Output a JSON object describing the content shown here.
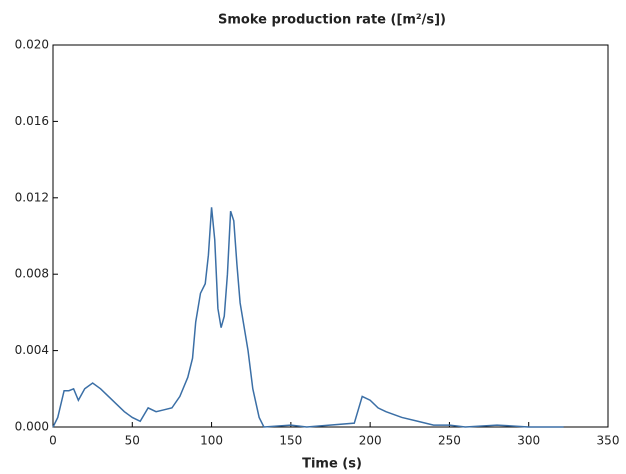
{
  "chart_data": {
    "type": "line",
    "title": "Smoke production rate ([m²/s])",
    "xlabel": "Time (s)",
    "x": [
      0,
      3,
      7,
      10,
      13,
      16,
      20,
      25,
      30,
      35,
      40,
      45,
      50,
      55,
      60,
      65,
      70,
      75,
      80,
      85,
      88,
      90,
      93,
      96,
      98,
      100,
      102,
      104,
      106,
      108,
      110,
      112,
      114,
      116,
      118,
      120,
      123,
      126,
      130,
      133,
      150,
      160,
      190,
      195,
      200,
      205,
      210,
      220,
      230,
      240,
      250,
      260,
      280,
      300,
      322
    ],
    "series": [
      {
        "color": "#3b6fa6",
        "values": [
          0,
          0.0005,
          0.0019,
          0.0019,
          0.002,
          0.0014,
          0.002,
          0.0023,
          0.002,
          0.0016,
          0.0012,
          0.0008,
          0.0005,
          0.0003,
          0.001,
          0.0008,
          0.0009,
          0.001,
          0.0016,
          0.0026,
          0.0036,
          0.0055,
          0.007,
          0.0075,
          0.009,
          0.0115,
          0.0098,
          0.0062,
          0.0052,
          0.0058,
          0.008,
          0.0113,
          0.0108,
          0.0085,
          0.0065,
          0.0055,
          0.004,
          0.002,
          0.0005,
          0,
          0.0001,
          0,
          0.0002,
          0.0016,
          0.0014,
          0.001,
          0.0008,
          0.0005,
          0.0003,
          0.0001,
          0.0001,
          0,
          0.0001,
          0,
          0
        ]
      }
    ],
    "xlim": [
      0,
      350
    ],
    "xticks": [
      0,
      50,
      100,
      150,
      200,
      250,
      300,
      350
    ],
    "ylim": [
      0,
      0.02
    ],
    "yticks": [
      {
        "value": 0,
        "label": "0.000"
      },
      {
        "value": 0.004,
        "label": "0.004"
      },
      {
        "value": 0.008,
        "label": "0.008"
      },
      {
        "value": 0.012,
        "label": "0.012"
      },
      {
        "value": 0.016,
        "label": "0.016"
      },
      {
        "value": 0.02,
        "label": "0.020"
      }
    ]
  }
}
